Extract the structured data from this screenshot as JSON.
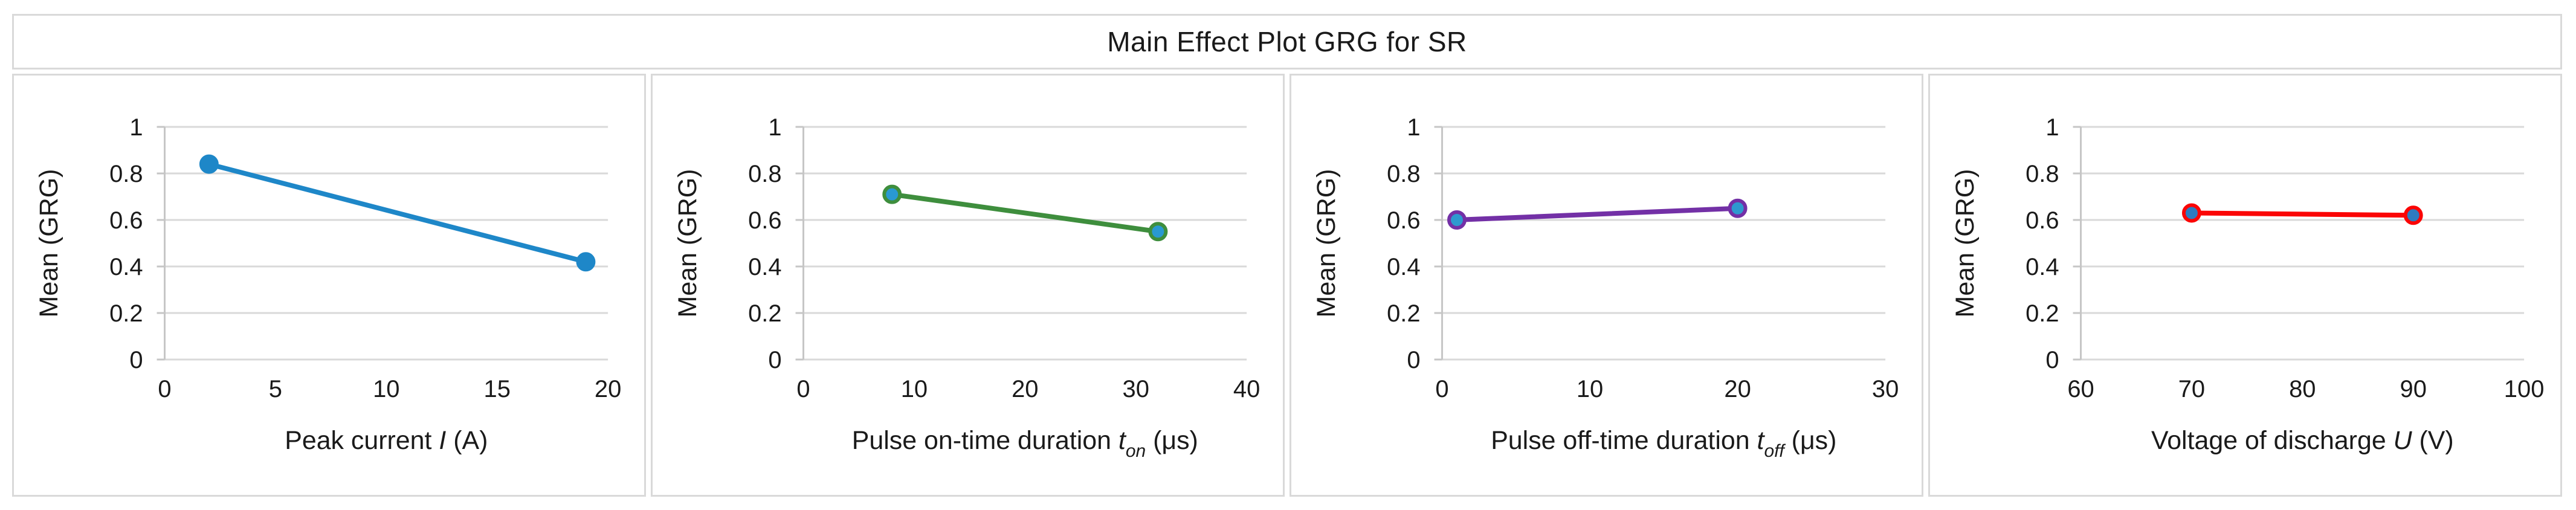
{
  "title": "Main Effect Plot GRG for SR",
  "ylabel": "Mean (GRG)",
  "style": {
    "grid_color": "#d9d9d9",
    "axis_color": "#c6c6c6",
    "text_color": "#1a1a1a",
    "box_border_color": "#d9d9d9",
    "background": "#ffffff"
  },
  "chart_data": [
    {
      "type": "line",
      "id": "peak-current",
      "xlabel_plain": "Peak current I (A)",
      "xlabel_segments": [
        {
          "t": "Peak current "
        },
        {
          "t": "I",
          "i": true
        },
        {
          "t": " (A)"
        }
      ],
      "ylabel": "Mean (GRG)",
      "x": [
        2,
        19
      ],
      "y": [
        0.84,
        0.42
      ],
      "xlim": [
        0,
        20
      ],
      "xticks": [
        "0",
        "5",
        "10",
        "15",
        "20"
      ],
      "xtick_values": [
        0,
        5,
        10,
        15,
        20
      ],
      "ylim": [
        0,
        1
      ],
      "yticks": [
        "0",
        "0.2",
        "0.4",
        "0.6",
        "0.8",
        "1"
      ],
      "ytick_values": [
        0,
        0.2,
        0.4,
        0.6,
        0.8,
        1
      ],
      "grid": "horizontal",
      "legend": "none",
      "line_color": "#1e87c8",
      "marker_fill": "#1e87c8",
      "marker_stroke": "#1e87c8"
    },
    {
      "type": "line",
      "id": "pulse-on-time",
      "xlabel_plain": "Pulse on-time duration t_on (μs)",
      "xlabel_segments": [
        {
          "t": "Pulse on-time duration "
        },
        {
          "t": "t",
          "i": true
        },
        {
          "t": "on",
          "i": true,
          "sub": true
        },
        {
          "t": " (μs)"
        }
      ],
      "ylabel": "Mean (GRG)",
      "x": [
        8,
        32
      ],
      "y": [
        0.71,
        0.55
      ],
      "xlim": [
        0,
        40
      ],
      "xticks": [
        "0",
        "10",
        "20",
        "30",
        "40"
      ],
      "xtick_values": [
        0,
        10,
        20,
        30,
        40
      ],
      "ylim": [
        0,
        1
      ],
      "yticks": [
        "0",
        "0.2",
        "0.4",
        "0.6",
        "0.8",
        "1"
      ],
      "ytick_values": [
        0,
        0.2,
        0.4,
        0.6,
        0.8,
        1
      ],
      "grid": "horizontal",
      "legend": "none",
      "line_color": "#3e8e3d",
      "marker_fill": "#2999d1",
      "marker_stroke": "#3e8e3d"
    },
    {
      "type": "line",
      "id": "pulse-off-time",
      "xlabel_plain": "Pulse off-time duration t_off (μs)",
      "xlabel_segments": [
        {
          "t": "Pulse off-time duration "
        },
        {
          "t": "t",
          "i": true
        },
        {
          "t": "off",
          "i": true,
          "sub": true
        },
        {
          "t": " (μs)"
        }
      ],
      "ylabel": "Mean (GRG)",
      "x": [
        1,
        20
      ],
      "y": [
        0.6,
        0.65
      ],
      "xlim": [
        0,
        30
      ],
      "xticks": [
        "0",
        "10",
        "20",
        "30"
      ],
      "xtick_values": [
        0,
        10,
        20,
        30
      ],
      "ylim": [
        0,
        1
      ],
      "yticks": [
        "0",
        "0.2",
        "0.4",
        "0.6",
        "0.8",
        "1"
      ],
      "ytick_values": [
        0,
        0.2,
        0.4,
        0.6,
        0.8,
        1
      ],
      "grid": "horizontal",
      "legend": "none",
      "line_color": "#7330a6",
      "marker_fill": "#2e99cf",
      "marker_stroke": "#7330a6"
    },
    {
      "type": "line",
      "id": "voltage-discharge",
      "xlabel_plain": "Voltage of discharge U (V)",
      "xlabel_segments": [
        {
          "t": "Voltage of discharge "
        },
        {
          "t": "U",
          "i": true
        },
        {
          "t": " (V)"
        }
      ],
      "ylabel": "Mean (GRG)",
      "x": [
        70,
        90
      ],
      "y": [
        0.63,
        0.62
      ],
      "xlim": [
        60,
        100
      ],
      "xticks": [
        "60",
        "70",
        "80",
        "90",
        "100"
      ],
      "xtick_values": [
        60,
        70,
        80,
        90,
        100
      ],
      "ylim": [
        0,
        1
      ],
      "yticks": [
        "0",
        "0.2",
        "0.4",
        "0.6",
        "0.8",
        "1"
      ],
      "ytick_values": [
        0,
        0.2,
        0.4,
        0.6,
        0.8,
        1
      ],
      "grid": "horizontal",
      "legend": "none",
      "line_color": "#fb0505",
      "marker_fill": "#2e7bc0",
      "marker_stroke": "#fb0505"
    }
  ]
}
